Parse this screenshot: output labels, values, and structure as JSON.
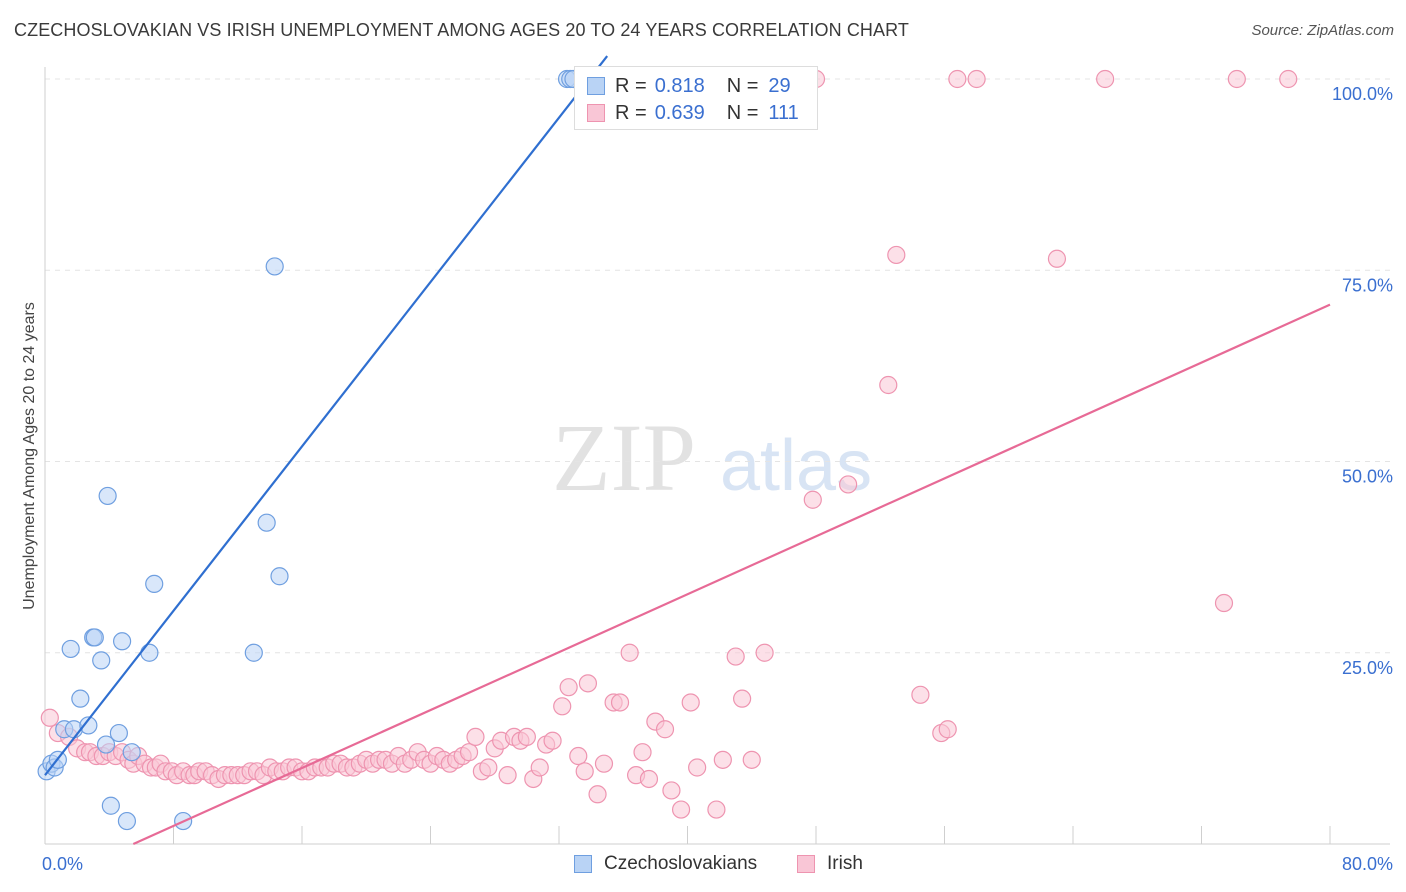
{
  "title": "CZECHOSLOVAKIAN VS IRISH UNEMPLOYMENT AMONG AGES 20 TO 24 YEARS CORRELATION CHART",
  "source": "Source: ZipAtlas.com",
  "watermark": {
    "zip": "ZIP",
    "atlas": "atlas"
  },
  "legend": {
    "r_label": "R =",
    "n_label": "N =",
    "rows": [
      {
        "name": "Czechoslovakians",
        "r": "0.818",
        "n": "29"
      },
      {
        "name": "Irish",
        "r": "0.639",
        "n": "111"
      }
    ]
  },
  "colors": {
    "czech_fill": "#b9d3f5",
    "czech_stroke": "#6f9fe0",
    "czech_line": "#2f6fd0",
    "irish_fill": "#f9c6d6",
    "irish_stroke": "#ee94b0",
    "irish_line": "#e76a96",
    "tick_label": "#3a6fd0"
  },
  "chart_data": {
    "type": "scatter",
    "title": "CZECHOSLOVAKIAN VS IRISH UNEMPLOYMENT AMONG AGES 20 TO 24 YEARS CORRELATION CHART",
    "xlabel": "",
    "ylabel": "Unemployment Among Ages 20 to 24 years",
    "xlim": [
      0,
      80
    ],
    "ylim": [
      0,
      100
    ],
    "x_tick_labels": [
      {
        "value": 0,
        "label": "0.0%"
      },
      {
        "value": 80,
        "label": "80.0%"
      }
    ],
    "y_tick_labels": [
      {
        "value": 25,
        "label": "25.0%"
      },
      {
        "value": 50,
        "label": "50.0%"
      },
      {
        "value": 75,
        "label": "75.0%"
      },
      {
        "value": 100,
        "label": "100.0%"
      }
    ],
    "grid": true,
    "legend_position": "bottom-center",
    "series": [
      {
        "name": "Czechoslovakians",
        "points": [
          [
            0.1,
            9.5
          ],
          [
            0.4,
            10.5
          ],
          [
            0.6,
            10
          ],
          [
            0.8,
            11
          ],
          [
            1.2,
            15
          ],
          [
            1.6,
            25.5
          ],
          [
            1.8,
            15
          ],
          [
            2.2,
            19
          ],
          [
            2.7,
            15.5
          ],
          [
            3,
            27
          ],
          [
            3.1,
            27
          ],
          [
            3.5,
            24
          ],
          [
            3.8,
            13
          ],
          [
            3.9,
            45.5
          ],
          [
            4.1,
            5
          ],
          [
            4.6,
            14.5
          ],
          [
            4.8,
            26.5
          ],
          [
            5.1,
            3
          ],
          [
            5.4,
            12
          ],
          [
            6.5,
            25
          ],
          [
            6.8,
            34
          ],
          [
            8.6,
            3
          ],
          [
            13,
            25
          ],
          [
            13.8,
            42
          ],
          [
            14.3,
            75.5
          ],
          [
            14.6,
            35
          ],
          [
            32.5,
            100
          ],
          [
            32.7,
            100
          ],
          [
            32.9,
            100
          ]
        ],
        "trend": {
          "x1": 0,
          "y1": 9,
          "x2": 35,
          "y2": 103
        }
      },
      {
        "name": "Irish",
        "points": [
          [
            0.3,
            16.5
          ],
          [
            0.8,
            14.5
          ],
          [
            1.5,
            14
          ],
          [
            2,
            12.5
          ],
          [
            2.5,
            12
          ],
          [
            2.8,
            12
          ],
          [
            3.2,
            11.5
          ],
          [
            3.6,
            11.5
          ],
          [
            4,
            12
          ],
          [
            4.4,
            11.5
          ],
          [
            4.8,
            12
          ],
          [
            5.2,
            11
          ],
          [
            5.5,
            10.5
          ],
          [
            5.8,
            11.5
          ],
          [
            6.2,
            10.5
          ],
          [
            6.6,
            10
          ],
          [
            6.9,
            10
          ],
          [
            7.2,
            10.5
          ],
          [
            7.5,
            9.5
          ],
          [
            7.9,
            9.5
          ],
          [
            8.2,
            9
          ],
          [
            8.6,
            9.5
          ],
          [
            9,
            9
          ],
          [
            9.3,
            9
          ],
          [
            9.6,
            9.5
          ],
          [
            10,
            9.5
          ],
          [
            10.4,
            9
          ],
          [
            10.8,
            8.5
          ],
          [
            11.2,
            9
          ],
          [
            11.6,
            9
          ],
          [
            12,
            9
          ],
          [
            12.4,
            9
          ],
          [
            12.8,
            9.5
          ],
          [
            13.2,
            9.5
          ],
          [
            13.6,
            9
          ],
          [
            14,
            10
          ],
          [
            14.4,
            9.5
          ],
          [
            14.8,
            9.5
          ],
          [
            15.2,
            10
          ],
          [
            15.6,
            10
          ],
          [
            16,
            9.5
          ],
          [
            16.4,
            9.5
          ],
          [
            16.8,
            10
          ],
          [
            17.2,
            10
          ],
          [
            17.6,
            10
          ],
          [
            18,
            10.5
          ],
          [
            18.4,
            10.5
          ],
          [
            18.8,
            10
          ],
          [
            19.2,
            10
          ],
          [
            19.6,
            10.5
          ],
          [
            20,
            11
          ],
          [
            20.4,
            10.5
          ],
          [
            20.8,
            11
          ],
          [
            21.2,
            11
          ],
          [
            21.6,
            10.5
          ],
          [
            22,
            11.5
          ],
          [
            22.4,
            10.5
          ],
          [
            22.8,
            11
          ],
          [
            23.2,
            12
          ],
          [
            23.6,
            11
          ],
          [
            24,
            10.5
          ],
          [
            24.4,
            11.5
          ],
          [
            24.8,
            11
          ],
          [
            25.2,
            10.5
          ],
          [
            25.6,
            11
          ],
          [
            26,
            11.5
          ],
          [
            26.4,
            12
          ],
          [
            26.8,
            14
          ],
          [
            27.2,
            9.5
          ],
          [
            27.6,
            10
          ],
          [
            28,
            12.5
          ],
          [
            28.4,
            13.5
          ],
          [
            28.8,
            9
          ],
          [
            29.2,
            14
          ],
          [
            29.6,
            13.5
          ],
          [
            30,
            14
          ],
          [
            30.4,
            8.5
          ],
          [
            30.8,
            10
          ],
          [
            31.2,
            13
          ],
          [
            31.6,
            13.5
          ],
          [
            32.2,
            18
          ],
          [
            32.6,
            20.5
          ],
          [
            33.2,
            11.5
          ],
          [
            33.6,
            9.5
          ],
          [
            33.8,
            21
          ],
          [
            34.4,
            6.5
          ],
          [
            34.8,
            10.5
          ],
          [
            35.4,
            18.5
          ],
          [
            35.8,
            18.5
          ],
          [
            36.4,
            25
          ],
          [
            36.8,
            9
          ],
          [
            37.2,
            12
          ],
          [
            37.6,
            8.5
          ],
          [
            38,
            16
          ],
          [
            38.6,
            15
          ],
          [
            39,
            7
          ],
          [
            39.6,
            4.5
          ],
          [
            40.2,
            18.5
          ],
          [
            40.6,
            10
          ],
          [
            41.8,
            4.5
          ],
          [
            42.2,
            11
          ],
          [
            43,
            24.5
          ],
          [
            43.4,
            19
          ],
          [
            44,
            11
          ],
          [
            44.8,
            25
          ],
          [
            47.8,
            45
          ],
          [
            50,
            47
          ],
          [
            52.5,
            60
          ],
          [
            53,
            77
          ],
          [
            54.5,
            19.5
          ],
          [
            55.8,
            14.5
          ],
          [
            56.2,
            15
          ],
          [
            56.8,
            100
          ],
          [
            58,
            100
          ],
          [
            63,
            76.5
          ],
          [
            66,
            100
          ],
          [
            73.4,
            31.5
          ],
          [
            74.2,
            100
          ],
          [
            77.4,
            100
          ],
          [
            48,
            100
          ]
        ],
        "trend": {
          "x1": 5.5,
          "y1": 0,
          "x2": 80,
          "y2": 70.5
        }
      }
    ]
  }
}
